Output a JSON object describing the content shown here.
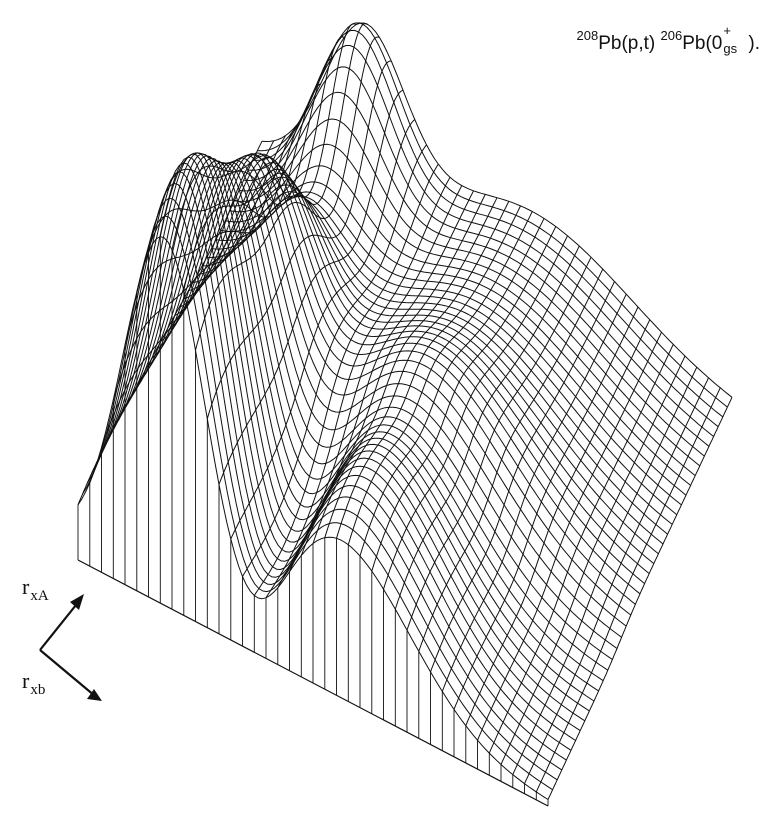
{
  "chart_data": {
    "type": "surface",
    "title": {
      "target_mass": "208",
      "target_symbol": "Pb",
      "reaction": "(p,t)",
      "residual_mass": "206",
      "residual_symbol": "Pb",
      "state_open": "(0",
      "state_sup": "+",
      "state_sub": "gs",
      "state_close": ")."
    },
    "axes": [
      {
        "name": "r",
        "subscript": "xA"
      },
      {
        "name": "r",
        "subscript": "xb"
      }
    ],
    "surface": {
      "grid_u_count": 40,
      "grid_v_count": 40,
      "features": [
        {
          "label": "",
          "u": 0.18,
          "v": 0.1,
          "height": 1.0
        },
        {
          "label": "",
          "u": 0.55,
          "v": 0.12,
          "height": 0.45
        },
        {
          "label": "",
          "u": 0.2,
          "v": 0.55,
          "height": 0.3
        }
      ]
    },
    "grid": false,
    "colors": {
      "line": "#111111",
      "background": "#ffffff"
    }
  }
}
